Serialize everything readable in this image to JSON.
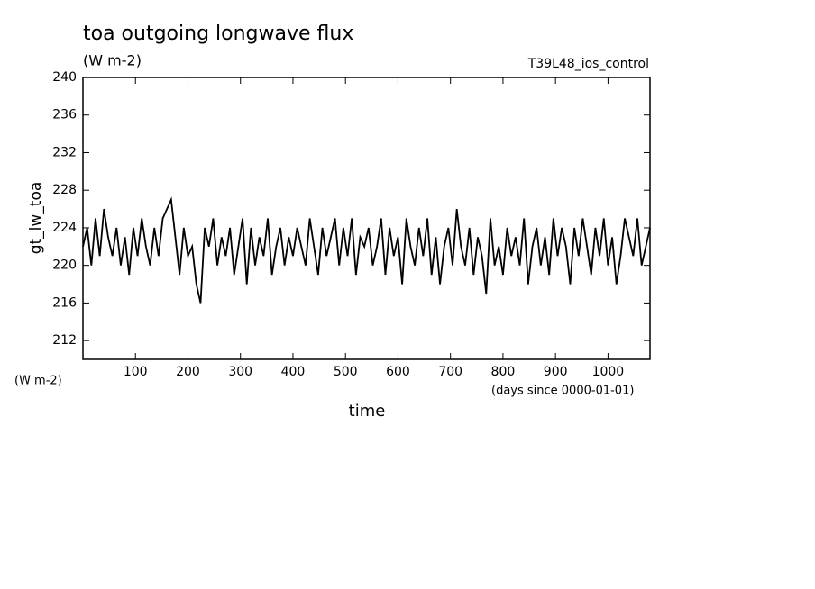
{
  "chart_data": {
    "type": "line",
    "title": "toa outgoing longwave flux",
    "units": "(W m-2)",
    "run_name": "T39L48_ios_control",
    "y_label": "gt_lw_toa",
    "y_units": "(W m-2)",
    "x_label": "time",
    "x_units": "(days since 0000-01-01)",
    "x": [
      0,
      8,
      16,
      24,
      32,
      40,
      48,
      56,
      64,
      72,
      80,
      88,
      96,
      104,
      112,
      120,
      128,
      136,
      144,
      152,
      160,
      168,
      176,
      184,
      192,
      200,
      208,
      216,
      224,
      232,
      240,
      248,
      256,
      264,
      272,
      280,
      288,
      296,
      304,
      312,
      320,
      328,
      336,
      344,
      352,
      360,
      368,
      376,
      384,
      392,
      400,
      408,
      416,
      424,
      432,
      440,
      448,
      456,
      464,
      472,
      480,
      488,
      496,
      504,
      512,
      520,
      528,
      536,
      544,
      552,
      560,
      568,
      576,
      584,
      592,
      600,
      608,
      616,
      624,
      632,
      640,
      648,
      656,
      664,
      672,
      680,
      688,
      696,
      704,
      712,
      720,
      728,
      736,
      744,
      752,
      760,
      768,
      776,
      784,
      792,
      800,
      808,
      816,
      824,
      832,
      840,
      848,
      856,
      864,
      872,
      880,
      888,
      896,
      904,
      912,
      920,
      928,
      936,
      944,
      952,
      960,
      968,
      976,
      984,
      992,
      1000,
      1008,
      1016,
      1024,
      1032,
      1040,
      1048,
      1056,
      1064,
      1072,
      1080
    ],
    "series": [
      {
        "color": "#000000",
        "values": [
          222,
          224,
          220,
          225,
          221,
          226,
          223,
          221,
          224,
          220,
          223,
          219,
          224,
          221,
          225,
          222,
          220,
          224,
          221,
          225,
          226,
          227,
          223,
          219,
          224,
          221,
          222,
          218,
          216,
          224,
          222,
          225,
          220,
          223,
          221,
          224,
          219,
          222,
          225,
          218,
          224,
          220,
          223,
          221,
          225,
          219,
          222,
          224,
          220,
          223,
          221,
          224,
          222,
          220,
          225,
          222,
          219,
          224,
          221,
          223,
          225,
          220,
          224,
          221,
          225,
          219,
          223,
          222,
          224,
          220,
          222,
          225,
          219,
          224,
          221,
          223,
          218,
          225,
          222,
          220,
          224,
          221,
          225,
          219,
          223,
          218,
          222,
          224,
          220,
          226,
          222,
          220,
          224,
          219,
          223,
          221,
          217,
          225,
          220,
          222,
          219,
          224,
          221,
          223,
          220,
          225,
          218,
          222,
          224,
          220,
          223,
          219,
          225,
          221,
          224,
          222,
          218,
          224,
          221,
          225,
          222,
          219,
          224,
          221,
          225,
          220,
          223,
          218,
          221,
          225,
          223,
          221,
          225,
          220,
          222,
          224
        ]
      }
    ],
    "xlim": [
      0,
      1080
    ],
    "ylim": [
      210,
      240
    ],
    "xticks": [
      100,
      200,
      300,
      400,
      500,
      600,
      700,
      800,
      900,
      1000
    ],
    "yticks": [
      212,
      216,
      220,
      224,
      228,
      232,
      236,
      240
    ]
  }
}
